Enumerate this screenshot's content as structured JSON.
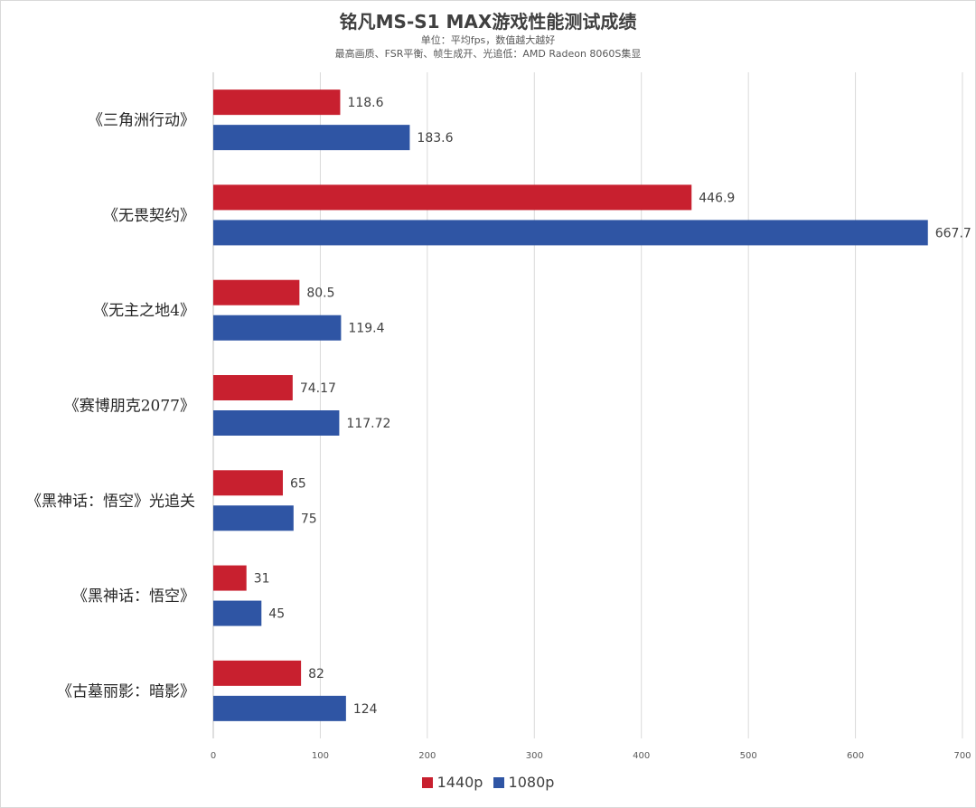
{
  "chart_data": {
    "type": "bar",
    "orientation": "horizontal",
    "title": "铭凡MS-S1 MAX游戏性能测试成绩",
    "subtitle_lines": [
      "单位：平均fps，数值越大越好",
      "最高画质、FSR平衡、帧生成开、光追低：AMD Radeon 8060S集显"
    ],
    "categories": [
      "《三角洲行动》",
      "《无畏契约》",
      "《无主之地4》",
      "《赛博朋克2077》",
      "《黑神话：悟空》光追关",
      "《黑神话：悟空》",
      "《古墓丽影：暗影》"
    ],
    "series": [
      {
        "name": "1440p",
        "color": "#c8202f",
        "values": [
          118.6,
          446.9,
          80.5,
          74.17,
          65,
          31,
          82
        ],
        "labels": [
          "118.6",
          "446.9",
          "80.5",
          "74.17",
          "65",
          "31",
          "82"
        ]
      },
      {
        "name": "1080p",
        "color": "#2f55a4",
        "values": [
          183.6,
          667.7,
          119.4,
          117.72,
          75,
          45,
          124
        ],
        "labels": [
          "183.6",
          "667.7",
          "119.4",
          "117.72",
          "75",
          "45",
          "124"
        ]
      }
    ],
    "xlim": [
      0,
      700
    ],
    "xticks": [
      "0",
      "100",
      "200",
      "300",
      "400",
      "500",
      "600",
      "700"
    ],
    "grid": true,
    "legend_position": "bottom"
  }
}
